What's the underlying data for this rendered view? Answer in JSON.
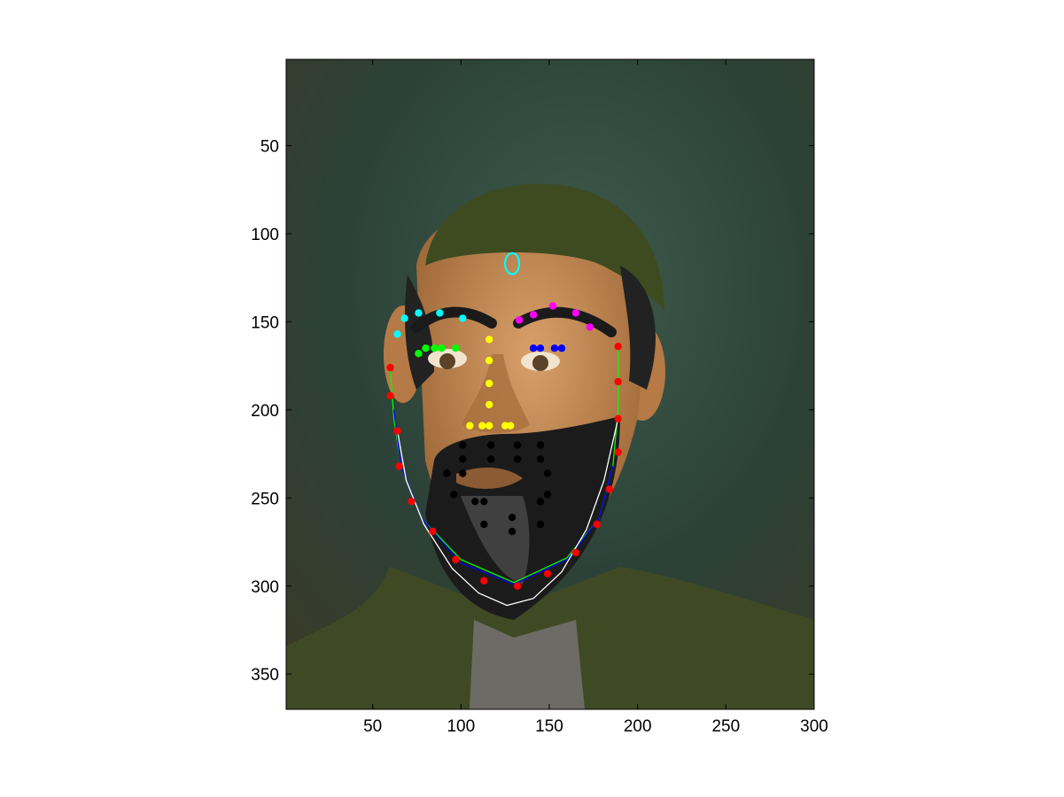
{
  "chart_data": {
    "type": "scatter",
    "title": "",
    "xlabel": "",
    "ylabel": "",
    "xlim": [
      1,
      300
    ],
    "ylim": [
      370,
      1
    ],
    "y_reversed": true,
    "grid": false,
    "background_image": "cartoon-portrait-bearded-man-green-cap",
    "xticks": [
      50,
      100,
      150,
      200,
      250,
      300
    ],
    "yticks": [
      50,
      100,
      150,
      200,
      250,
      300,
      350
    ],
    "point_groups": [
      {
        "name": "jaw",
        "color": "#ff0000",
        "points": [
          [
            60,
            176
          ],
          [
            60,
            192
          ],
          [
            64,
            212
          ],
          [
            65,
            232
          ],
          [
            72,
            252
          ],
          [
            84,
            269
          ],
          [
            97,
            285
          ],
          [
            113,
            297
          ],
          [
            132,
            300
          ],
          [
            149,
            293
          ],
          [
            165,
            281
          ],
          [
            177,
            265
          ],
          [
            184,
            245
          ],
          [
            189,
            224
          ],
          [
            189,
            205
          ],
          [
            189,
            184
          ],
          [
            189,
            164
          ]
        ]
      },
      {
        "name": "right-brow",
        "color": "#00ffff",
        "points": [
          [
            64,
            157
          ],
          [
            68,
            148
          ],
          [
            76,
            145
          ],
          [
            88,
            145
          ],
          [
            101,
            148
          ]
        ]
      },
      {
        "name": "left-brow",
        "color": "#ff00ff",
        "points": [
          [
            133,
            149
          ],
          [
            141,
            146
          ],
          [
            152,
            141
          ],
          [
            165,
            145
          ],
          [
            173,
            153
          ]
        ]
      },
      {
        "name": "right-eye",
        "color": "#00ff00",
        "points": [
          [
            76,
            168
          ],
          [
            80,
            165
          ],
          [
            85,
            165
          ],
          [
            89,
            165
          ],
          [
            97,
            165
          ]
        ]
      },
      {
        "name": "left-eye",
        "color": "#0000ff",
        "points": [
          [
            141,
            165
          ],
          [
            145,
            165
          ],
          [
            153,
            165
          ],
          [
            157,
            165
          ]
        ]
      },
      {
        "name": "nose",
        "color": "#ffff00",
        "points": [
          [
            116,
            160
          ],
          [
            116,
            172
          ],
          [
            116,
            185
          ],
          [
            116,
            197
          ],
          [
            105,
            209
          ],
          [
            112,
            209
          ],
          [
            116,
            209
          ],
          [
            125,
            209
          ],
          [
            128,
            209
          ]
        ]
      },
      {
        "name": "mouth",
        "color": "#000000",
        "points": [
          [
            101,
            220
          ],
          [
            117,
            220
          ],
          [
            132,
            220
          ],
          [
            145,
            220
          ],
          [
            101,
            228
          ],
          [
            117,
            228
          ],
          [
            132,
            228
          ],
          [
            145,
            228
          ],
          [
            92,
            236
          ],
          [
            101,
            236
          ],
          [
            149,
            236
          ],
          [
            96,
            248
          ],
          [
            149,
            248
          ],
          [
            108,
            252
          ],
          [
            113,
            252
          ],
          [
            145,
            252
          ],
          [
            113,
            265
          ],
          [
            129,
            261
          ],
          [
            145,
            265
          ],
          [
            129,
            269
          ]
        ]
      }
    ],
    "curves": [
      {
        "name": "fit-green",
        "color": "#00ff00",
        "points": [
          [
            60,
            176
          ],
          [
            62,
            205
          ],
          [
            66,
            232
          ],
          [
            78,
            262
          ],
          [
            100,
            285
          ],
          [
            130,
            298
          ],
          [
            160,
            284
          ],
          [
            178,
            262
          ],
          [
            186,
            232
          ],
          [
            189,
            200
          ],
          [
            189,
            164
          ]
        ]
      },
      {
        "name": "fit-blue",
        "color": "#0000ff",
        "points": [
          [
            62,
            200
          ],
          [
            66,
            232
          ],
          [
            78,
            262
          ],
          [
            100,
            287
          ],
          [
            130,
            299
          ],
          [
            160,
            285
          ],
          [
            178,
            262
          ],
          [
            186,
            232
          ]
        ]
      },
      {
        "name": "fit-white",
        "color": "#ffffff",
        "points": [
          [
            64,
            212
          ],
          [
            69,
            240
          ],
          [
            79,
            265
          ],
          [
            95,
            290
          ],
          [
            110,
            304
          ],
          [
            126,
            311
          ],
          [
            141,
            307
          ],
          [
            157,
            292
          ],
          [
            171,
            268
          ],
          [
            181,
            240
          ],
          [
            189,
            205
          ]
        ]
      }
    ],
    "ellipse": {
      "name": "marker",
      "color": "#00ffff",
      "cx": 129,
      "cy": 117,
      "rx": 4,
      "ry": 6
    }
  }
}
